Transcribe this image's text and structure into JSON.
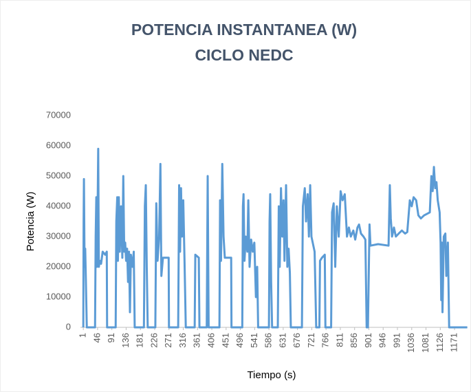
{
  "chart_data": {
    "type": "line",
    "title": "POTENCIA INSTANTANEA (W)",
    "subtitle": "CICLO NEDC",
    "x_label": "Tiempo (s)",
    "y_label": "Potencia (W)",
    "color": "#5b9bd5",
    "grid": false,
    "x": [
      1,
      2,
      3,
      5,
      7,
      9,
      12,
      38,
      40,
      42,
      44,
      46,
      48,
      50,
      53,
      57,
      62,
      70,
      75,
      76,
      103,
      105,
      108,
      110,
      113,
      116,
      120,
      124,
      127,
      130,
      133,
      136,
      139,
      142,
      145,
      148,
      151,
      156,
      160,
      163,
      192,
      195,
      198,
      201,
      204,
      228,
      231,
      235,
      240,
      244,
      247,
      252,
      270,
      271,
      300,
      303,
      306,
      309,
      312,
      316,
      320,
      324,
      352,
      354,
      365,
      367,
      390,
      393,
      396,
      430,
      432,
      435,
      439,
      443,
      447,
      467,
      468,
      502,
      504,
      506,
      509,
      513,
      518,
      521,
      525,
      530,
      535,
      540,
      545,
      549,
      552,
      586,
      588,
      590,
      593,
      596,
      614,
      617,
      620,
      624,
      628,
      632,
      635,
      640,
      644,
      648,
      652,
      655,
      690,
      693,
      699,
      703,
      708,
      712,
      716,
      720,
      730,
      735,
      745,
      747,
      753,
      762,
      764,
      782,
      785,
      790,
      795,
      800,
      806,
      812,
      818,
      825,
      832,
      838,
      844,
      852,
      858,
      865,
      870,
      876,
      884,
      890,
      894,
      898,
      903,
      906,
      930,
      963,
      967,
      970,
      974,
      980,
      986,
      995,
      1005,
      1015,
      1022,
      1030,
      1036,
      1042,
      1050,
      1057,
      1065,
      1075,
      1093,
      1098,
      1102,
      1106,
      1110,
      1114,
      1118,
      1124,
      1127,
      1129,
      1131,
      1133,
      1137,
      1142,
      1145,
      1150,
      1154,
      1211
    ],
    "values": [
      0,
      35000,
      49000,
      20000,
      26000,
      16000,
      0,
      0,
      30000,
      43000,
      20000,
      38000,
      59000,
      20000,
      22000,
      21000,
      25000,
      24000,
      25000,
      0,
      0,
      35000,
      43000,
      22000,
      43000,
      25000,
      40000,
      23000,
      50000,
      25000,
      28000,
      22000,
      26000,
      15000,
      25000,
      5000,
      24000,
      20000,
      25000,
      0,
      0,
      40000,
      47000,
      20000,
      0,
      0,
      41000,
      22000,
      30000,
      54000,
      17000,
      23000,
      23000,
      0,
      0,
      47000,
      25000,
      46000,
      30000,
      42000,
      22000,
      0,
      0,
      24000,
      23000,
      0,
      0,
      50000,
      0,
      0,
      42000,
      22000,
      54000,
      30000,
      23000,
      23000,
      0,
      0,
      40000,
      44000,
      22000,
      30000,
      25000,
      42000,
      20000,
      29000,
      25000,
      28000,
      10000,
      20000,
      0,
      0,
      35000,
      44000,
      15000,
      0,
      0,
      40000,
      20000,
      46000,
      30000,
      42000,
      22000,
      47000,
      20000,
      26000,
      18000,
      0,
      0,
      40000,
      46000,
      35000,
      44000,
      30000,
      47000,
      30000,
      25000,
      0,
      0,
      22000,
      23000,
      24000,
      0,
      0,
      38000,
      41000,
      20000,
      40000,
      30000,
      45000,
      42000,
      44000,
      30000,
      33000,
      30000,
      32000,
      29000,
      33000,
      34000,
      31000,
      30000,
      29000,
      0,
      0,
      34000,
      27000,
      27500,
      27000,
      47000,
      36000,
      30000,
      33000,
      30000,
      31000,
      32000,
      31000,
      31500,
      42000,
      40000,
      43000,
      42000,
      37000,
      36000,
      37000,
      38000,
      50000,
      45000,
      53000,
      46000,
      48000,
      42000,
      38000,
      28000,
      9000,
      28000,
      5000,
      30000,
      31000,
      17000,
      28000,
      0,
      0
    ],
    "xlim": [
      -8,
      1212
    ],
    "xticks": [
      1,
      46,
      91,
      136,
      181,
      226,
      271,
      316,
      361,
      406,
      451,
      496,
      541,
      586,
      631,
      676,
      721,
      766,
      811,
      856,
      901,
      946,
      991,
      1036,
      1081,
      1126,
      1171
    ],
    "ylim": [
      0,
      70000
    ],
    "yticks": [
      0,
      10000,
      20000,
      30000,
      40000,
      50000,
      60000,
      70000
    ]
  }
}
